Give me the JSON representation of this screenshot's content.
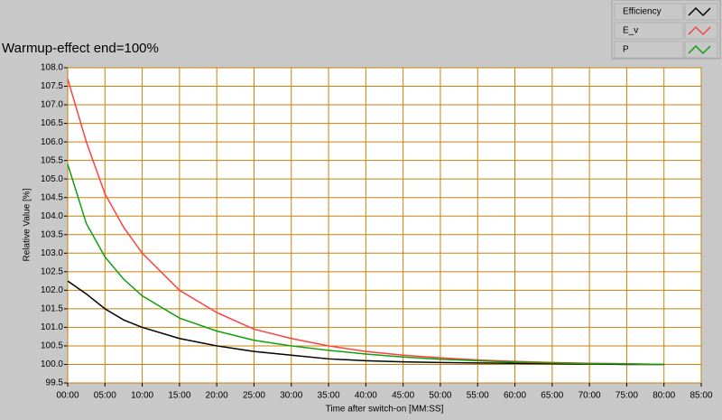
{
  "chart_data": {
    "type": "line",
    "title": "Warmup-effect end=100%",
    "x_label": "Time after switch-on [MM:SS]",
    "y_label": "Relative Value [%]",
    "grid": true,
    "grid_color": "#c8820a",
    "legend_position": "top-right",
    "xlim": [
      0,
      85
    ],
    "ylim": [
      99.5,
      108
    ],
    "xticks": [
      {
        "value": 0,
        "label": "00:00"
      },
      {
        "value": 5,
        "label": "05:00"
      },
      {
        "value": 10,
        "label": "10:00"
      },
      {
        "value": 15,
        "label": "15:00"
      },
      {
        "value": 20,
        "label": "20:00"
      },
      {
        "value": 25,
        "label": "25:00"
      },
      {
        "value": 30,
        "label": "30:00"
      },
      {
        "value": 35,
        "label": "35:00"
      },
      {
        "value": 40,
        "label": "40:00"
      },
      {
        "value": 45,
        "label": "45:00"
      },
      {
        "value": 50,
        "label": "50:00"
      },
      {
        "value": 55,
        "label": "55:00"
      },
      {
        "value": 60,
        "label": "60:00"
      },
      {
        "value": 65,
        "label": "65:00"
      },
      {
        "value": 70,
        "label": "70:00"
      },
      {
        "value": 75,
        "label": "75:00"
      },
      {
        "value": 80,
        "label": "80:00"
      },
      {
        "value": 85,
        "label": "85:00"
      }
    ],
    "yticks": [
      99.5,
      {
        "value": 100,
        "label": "100.0"
      },
      100.5,
      {
        "value": 101,
        "label": "101.0"
      },
      101.5,
      {
        "value": 102,
        "label": "102.0"
      },
      102.5,
      {
        "value": 103,
        "label": "103.0"
      },
      103.5,
      {
        "value": 104,
        "label": "104.0"
      },
      104.5,
      {
        "value": 105,
        "label": "105.0"
      },
      105.5,
      {
        "value": 106,
        "label": "106.0"
      },
      106.5,
      {
        "value": 107,
        "label": "107.0"
      },
      107.5,
      {
        "value": 108,
        "label": "108.0"
      }
    ],
    "x": [
      0,
      2.5,
      5,
      7.5,
      10,
      15,
      20,
      25,
      30,
      35,
      40,
      45,
      50,
      55,
      60,
      65,
      70,
      75,
      80
    ],
    "series": [
      {
        "name": "Efficiency",
        "color": "#000000",
        "values": [
          102.25,
          101.9,
          101.5,
          101.2,
          101.0,
          100.7,
          100.5,
          100.35,
          100.25,
          100.15,
          100.1,
          100.07,
          100.05,
          100.04,
          100.03,
          100.02,
          100.01,
          100.0,
          100.0
        ]
      },
      {
        "name": "E_v",
        "color": "#ff4040",
        "values": [
          107.7,
          106.0,
          104.6,
          103.7,
          103.0,
          102.0,
          101.4,
          100.95,
          100.7,
          100.5,
          100.35,
          100.25,
          100.18,
          100.12,
          100.08,
          100.05,
          100.03,
          100.02,
          100.0
        ]
      },
      {
        "name": "P",
        "color": "#10a010",
        "values": [
          105.4,
          103.8,
          102.9,
          102.3,
          101.85,
          101.25,
          100.9,
          100.65,
          100.5,
          100.38,
          100.28,
          100.2,
          100.14,
          100.1,
          100.06,
          100.04,
          100.02,
          100.01,
          100.0
        ]
      }
    ]
  }
}
